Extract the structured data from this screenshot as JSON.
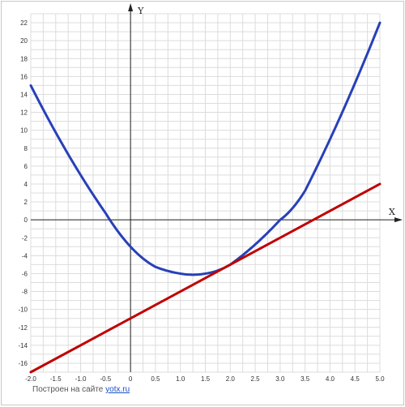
{
  "chart_data": {
    "type": "line",
    "x_axis_label": "X",
    "y_axis_label": "Y",
    "xlim": [
      -2.0,
      5.0
    ],
    "ylim": [
      -17,
      23
    ],
    "x_ticks": [
      "-2.0",
      "-1.5",
      "-1.0",
      "-0.5",
      "0",
      "0.5",
      "1.0",
      "1.5",
      "2.0",
      "2.5",
      "3.0",
      "3.5",
      "4.0",
      "4.5",
      "5.0"
    ],
    "y_ticks": [
      "22",
      "20",
      "18",
      "16",
      "14",
      "12",
      "10",
      "8",
      "6",
      "4",
      "2",
      "0",
      "-2",
      "-4",
      "-6",
      "-8",
      "-10",
      "-12",
      "-14",
      "-16"
    ],
    "grid": true,
    "series": [
      {
        "color": "#2840b8",
        "x": [
          -2.0,
          -1.5,
          -1.0,
          -0.5,
          0.0,
          0.5,
          1.0,
          1.25,
          1.5,
          2.0,
          2.5,
          3.0,
          3.5,
          4.0,
          4.5,
          5.0
        ],
        "y": [
          15.0,
          9.75,
          5.0,
          0.75,
          -3.0,
          -5.25,
          -6.0,
          -6.125,
          -6.0,
          -5.0,
          -2.75,
          0.0,
          3.25,
          9.0,
          15.25,
          22.0
        ]
      },
      {
        "color": "#c00000",
        "x": [
          -2.0,
          5.0
        ],
        "y": [
          -17.0,
          4.0
        ]
      }
    ]
  },
  "credit": {
    "prefix": "Построен на сайте",
    "link": "yotx.ru"
  }
}
